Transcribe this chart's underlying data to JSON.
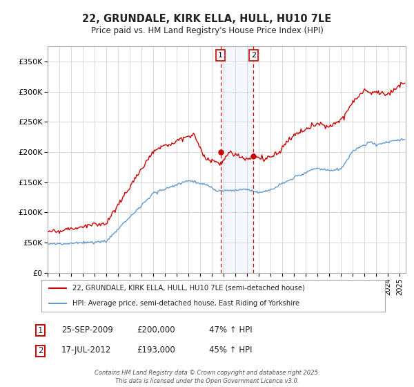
{
  "title": "22, GRUNDALE, KIRK ELLA, HULL, HU10 7LE",
  "subtitle": "Price paid vs. HM Land Registry's House Price Index (HPI)",
  "legend_line1": "22, GRUNDALE, KIRK ELLA, HULL, HU10 7LE (semi-detached house)",
  "legend_line2": "HPI: Average price, semi-detached house, East Riding of Yorkshire",
  "sale1_date": "25-SEP-2009",
  "sale1_price": "£200,000",
  "sale1_hpi": "47% ↑ HPI",
  "sale2_date": "17-JUL-2012",
  "sale2_price": "£193,000",
  "sale2_hpi": "45% ↑ HPI",
  "sale1_x": 2009.73,
  "sale2_x": 2012.54,
  "sale1_y": 200000,
  "sale2_y": 193000,
  "vline1_x": 2009.73,
  "vline2_x": 2012.54,
  "shade_start": 2009.73,
  "shade_end": 2012.54,
  "ylim": [
    0,
    375000
  ],
  "xlim": [
    1995,
    2025.5
  ],
  "red_color": "#cc0000",
  "blue_color": "#6699cc",
  "background_color": "#ffffff",
  "grid_color": "#cccccc",
  "footer": "Contains HM Land Registry data © Crown copyright and database right 2025.\nThis data is licensed under the Open Government Licence v3.0."
}
